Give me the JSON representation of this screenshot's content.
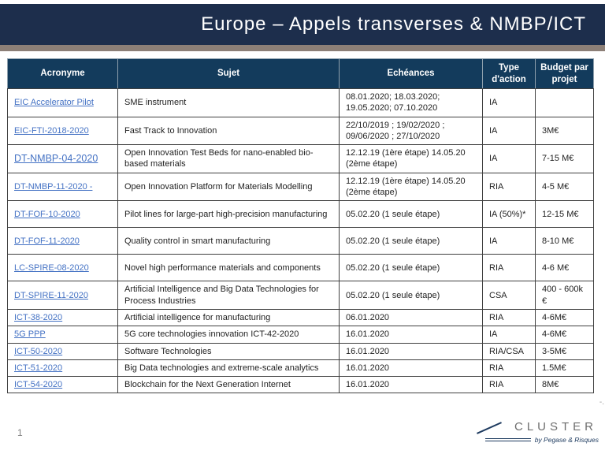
{
  "slide": {
    "title": "Europe – Appels transverses & NMBP/ICT",
    "page_number": "1"
  },
  "table": {
    "headers": [
      "Acronyme",
      "Sujet",
      "Echéances",
      "Type d'action",
      "Budget par projet"
    ],
    "rows": [
      {
        "acronym": "EIC Accelerator Pilot",
        "sujet": "SME instrument",
        "echeances": "08.01.2020; 18.03.2020; 19.05.2020; 07.10.2020",
        "type": "IA",
        "budget": ""
      },
      {
        "acronym": "EIC-FTI-2018-2020",
        "sujet": "Fast Track to Innovation",
        "echeances": "22/10/2019 ; 19/02/2020 ; 09/06/2020 ; 27/10/2020",
        "type": "IA",
        "budget": "3M€"
      },
      {
        "acronym": "DT-NMBP-04-2020",
        "sujet": "Open Innovation Test Beds for nano-enabled bio-based materials",
        "echeances": "12.12.19 (1ère étape) 14.05.20 (2ème étape)",
        "type": "IA",
        "budget": "7-15 M€",
        "large_acronym": true
      },
      {
        "acronym": "DT-NMBP-11-2020 -",
        "sujet": "Open Innovation Platform for Materials Modelling",
        "echeances": "12.12.19 (1ère étape) 14.05.20 (2ème étape)",
        "type": "RIA",
        "budget": "4-5 M€"
      },
      {
        "acronym": "DT-FOF-10-2020",
        "sujet": "Pilot lines for large-part high-precision manufacturing",
        "echeances": "05.02.20 (1 seule étape)",
        "type": "IA (50%)*",
        "budget": "12-15 M€"
      },
      {
        "acronym": "DT-FOF-11-2020",
        "sujet": "Quality control in smart manufacturing",
        "echeances": "05.02.20 (1 seule étape)",
        "type": "IA",
        "budget": "8-10 M€"
      },
      {
        "acronym": "LC-SPIRE-08-2020",
        "sujet": "Novel high performance materials and components",
        "echeances": "05.02.20 (1 seule étape)",
        "type": "RIA",
        "budget": "4-6 M€"
      },
      {
        "acronym": "DT-SPIRE-11-2020",
        "sujet": "Artificial Intelligence and Big Data Technologies for Process Industries",
        "echeances": "05.02.20 (1 seule étape)",
        "type": "CSA",
        "budget": "400 - 600k €"
      },
      {
        "acronym": "ICT-38-2020",
        "sujet": "Artificial intelligence for manufacturing",
        "echeances": "06.01.2020",
        "type": "RIA",
        "budget": "4-6M€"
      },
      {
        "acronym": "5G PPP",
        "sujet": "5G core technologies innovation ICT-42-2020",
        "echeances": "16.01.2020",
        "type": "IA",
        "budget": "4-6M€"
      },
      {
        "acronym": "ICT-50-2020",
        "sujet": "Software Technologies",
        "echeances": "16.01.2020",
        "type": "RIA/CSA",
        "budget": "3-5M€"
      },
      {
        "acronym": "ICT-51-2020",
        "sujet": "Big Data technologies and extreme-scale analytics",
        "echeances": "16.01.2020",
        "type": "RIA",
        "budget": "1.5M€"
      },
      {
        "acronym": "ICT-54-2020",
        "sujet": "Blockchain for the Next Generation Internet",
        "echeances": "16.01.2020",
        "type": "RIA",
        "budget": "8M€"
      }
    ]
  },
  "logo": {
    "name": "CLUSTER",
    "tagline": "by Pegase & Risques"
  },
  "footer": {
    "edge_mark": "-."
  },
  "colors": {
    "title_bar": "#1d2e4c",
    "gray_stripe": "#8c7f77",
    "table_header_bg": "#133b5c",
    "link": "#4472c4",
    "body_border": "#404040",
    "logo_gray": "#6e6e6e",
    "logo_navy": "#1d3a5f"
  }
}
